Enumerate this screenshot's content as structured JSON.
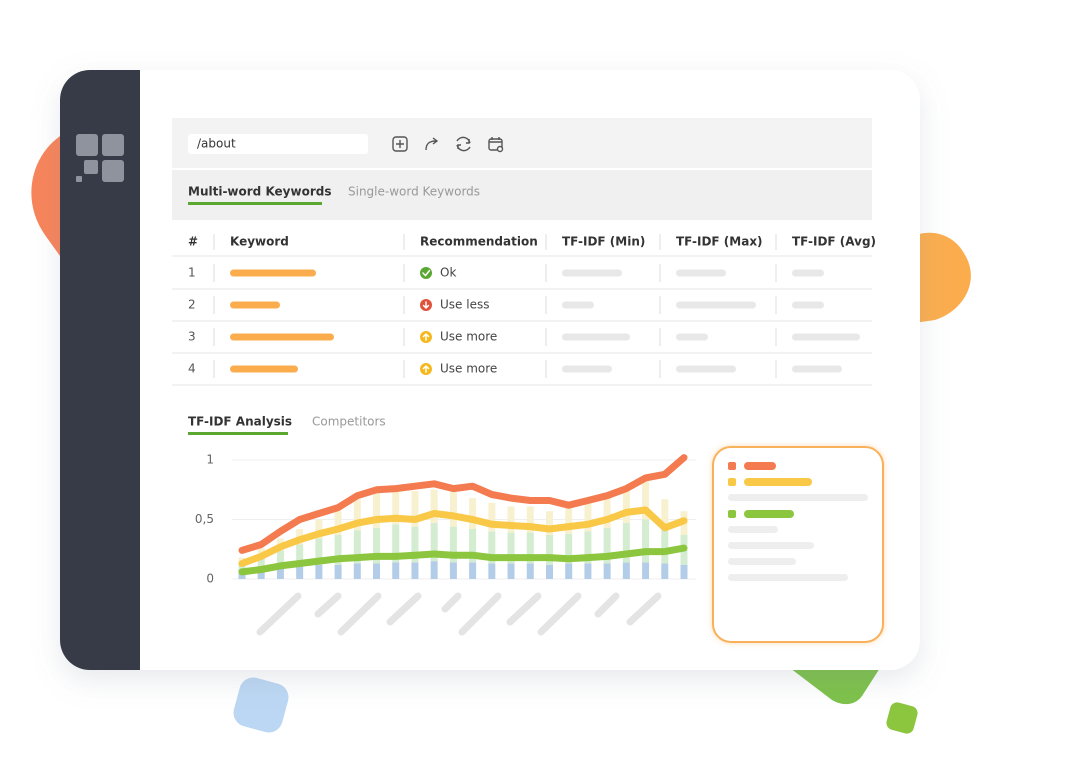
{
  "address_bar": {
    "url": "/about"
  },
  "keyword_tabs": [
    "Multi-word Keywords",
    "Single-word Keywords"
  ],
  "table": {
    "headers": [
      "#",
      "Keyword",
      "Recommendation",
      "TF-IDF (Min)",
      "TF-IDF (Max)",
      "TF-IDF (Avg)"
    ],
    "rows": [
      {
        "index": 1,
        "recommendation": "Ok"
      },
      {
        "index": 2,
        "recommendation": "Use less"
      },
      {
        "index": 3,
        "recommendation": "Use more"
      },
      {
        "index": 4,
        "recommendation": "Use more"
      }
    ]
  },
  "analysis_tabs": [
    "TF-IDF Analysis",
    "Competitors"
  ],
  "chart_data": {
    "type": "line",
    "x": [
      0,
      1,
      2,
      3,
      4,
      5,
      6,
      7,
      8,
      9,
      10,
      11,
      12,
      13,
      14,
      15,
      16,
      17,
      18,
      19,
      20,
      21,
      22,
      23
    ],
    "xlim": [
      0,
      23
    ],
    "ylim": [
      0,
      1
    ],
    "yticks": [
      {
        "value": 1,
        "label": "1"
      },
      {
        "value": 0.5,
        "label": "0,5"
      },
      {
        "value": 0,
        "label": "0"
      }
    ],
    "grid": true,
    "series": [
      {
        "type": "bar",
        "color": "#b3cde9",
        "values": [
          0.08,
          0.1,
          0.1,
          0.11,
          0.12,
          0.12,
          0.13,
          0.13,
          0.14,
          0.14,
          0.15,
          0.14,
          0.14,
          0.13,
          0.13,
          0.13,
          0.12,
          0.13,
          0.13,
          0.13,
          0.14,
          0.14,
          0.13,
          0.12
        ]
      },
      {
        "type": "bar",
        "color": "#d4ecd0",
        "values": [
          0.06,
          0.1,
          0.14,
          0.18,
          0.22,
          0.25,
          0.28,
          0.3,
          0.32,
          0.3,
          0.32,
          0.3,
          0.28,
          0.27,
          0.26,
          0.26,
          0.25,
          0.25,
          0.27,
          0.3,
          0.33,
          0.36,
          0.3,
          0.25
        ]
      },
      {
        "type": "bar",
        "color": "#f7f1cf",
        "values": [
          0.04,
          0.06,
          0.1,
          0.13,
          0.16,
          0.2,
          0.26,
          0.3,
          0.28,
          0.3,
          0.28,
          0.3,
          0.26,
          0.24,
          0.22,
          0.22,
          0.2,
          0.22,
          0.24,
          0.26,
          0.3,
          0.32,
          0.24,
          0.2
        ]
      },
      {
        "type": "line",
        "color": "#f47a4f",
        "values": [
          0.24,
          0.29,
          0.4,
          0.5,
          0.55,
          0.6,
          0.7,
          0.75,
          0.76,
          0.78,
          0.8,
          0.76,
          0.78,
          0.71,
          0.68,
          0.66,
          0.66,
          0.62,
          0.66,
          0.7,
          0.76,
          0.85,
          0.88,
          1.02
        ]
      },
      {
        "type": "line",
        "color": "#f9c846",
        "values": [
          0.13,
          0.19,
          0.27,
          0.33,
          0.38,
          0.42,
          0.47,
          0.5,
          0.51,
          0.5,
          0.55,
          0.53,
          0.5,
          0.46,
          0.45,
          0.44,
          0.42,
          0.44,
          0.46,
          0.5,
          0.56,
          0.58,
          0.43,
          0.49
        ]
      },
      {
        "type": "line",
        "color": "#8cc63f",
        "values": [
          0.06,
          0.08,
          0.11,
          0.13,
          0.15,
          0.17,
          0.18,
          0.19,
          0.19,
          0.2,
          0.21,
          0.2,
          0.2,
          0.18,
          0.18,
          0.18,
          0.18,
          0.17,
          0.18,
          0.19,
          0.21,
          0.23,
          0.23,
          0.26
        ]
      }
    ]
  }
}
